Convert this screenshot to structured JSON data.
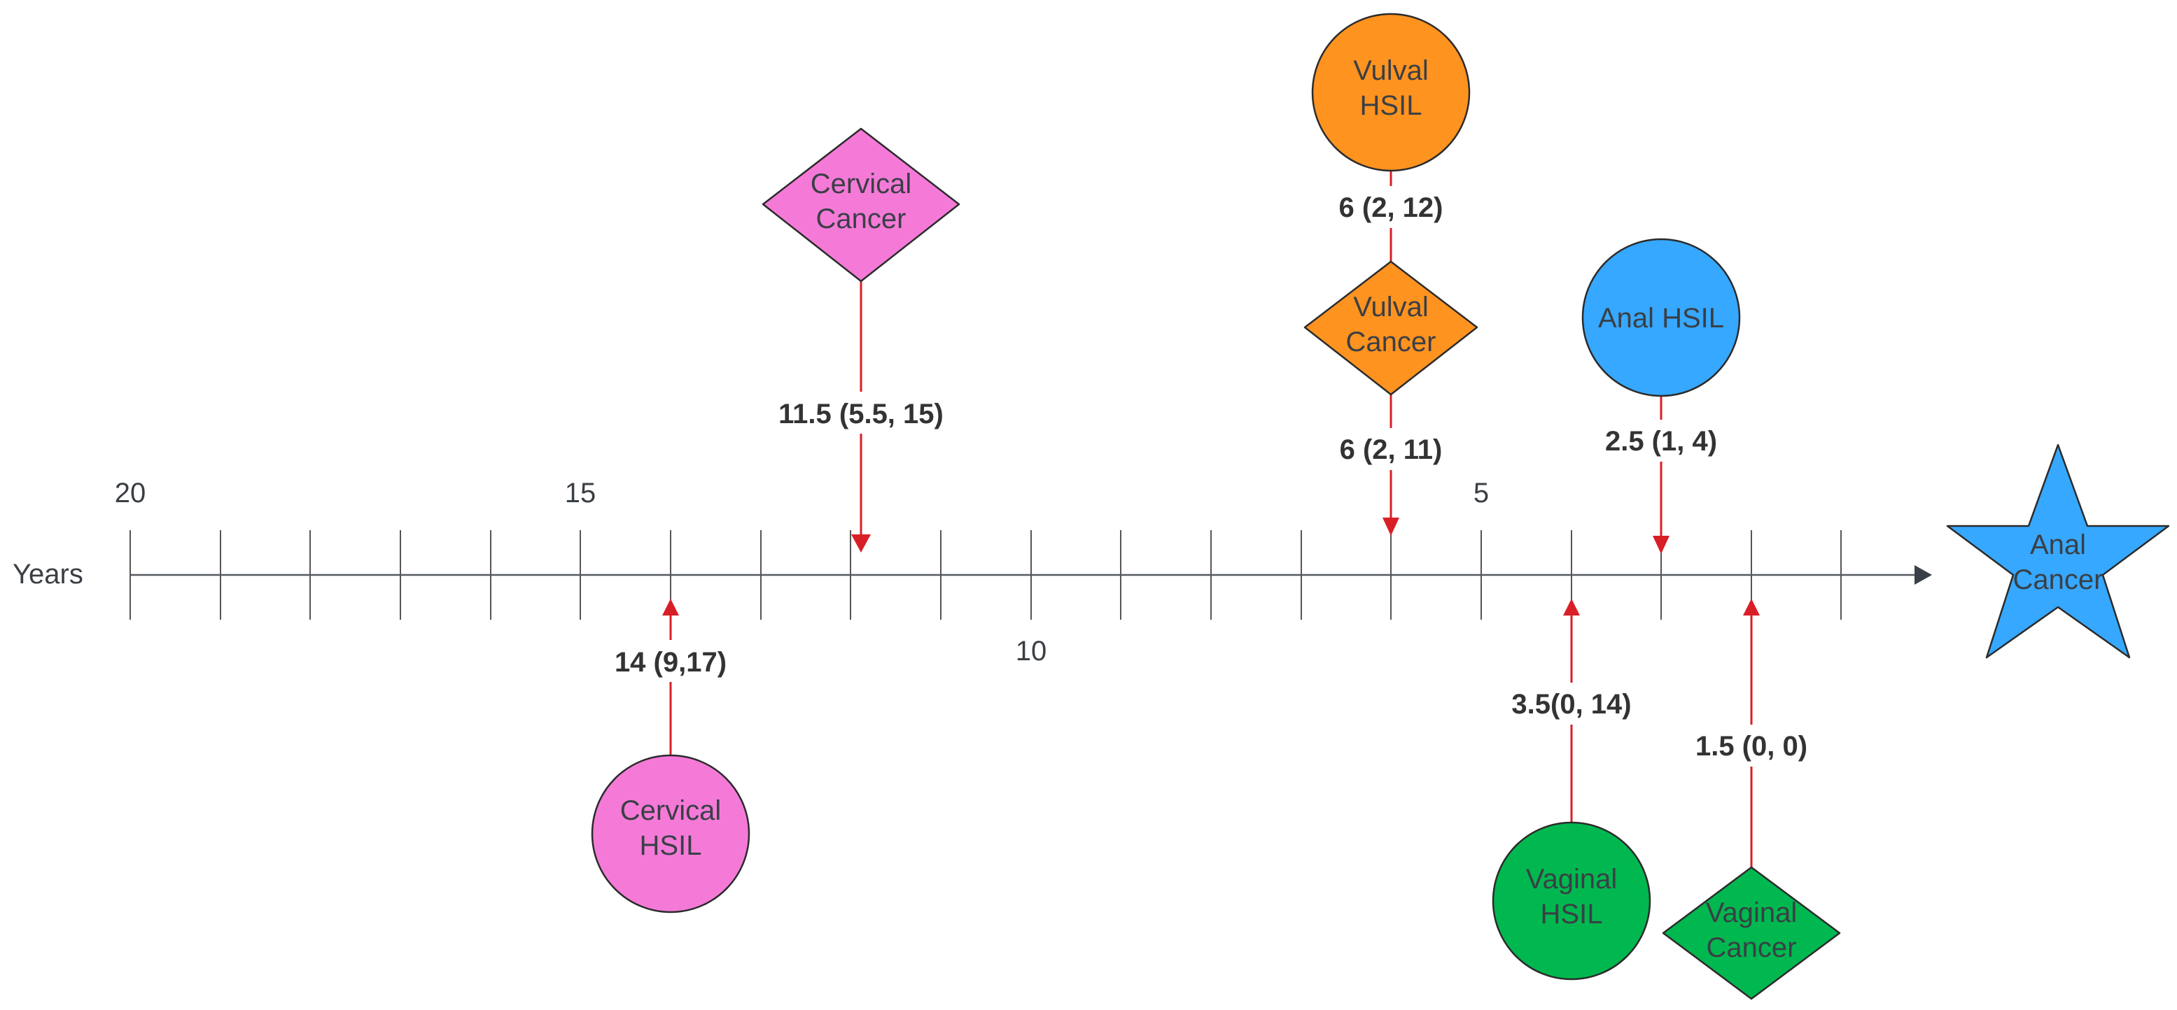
{
  "axis": {
    "label": "Years",
    "tick_labels": [
      "20",
      "15",
      "10",
      "5"
    ]
  },
  "colors": {
    "cervical": "#f57ad8",
    "vulval": "#ff9320",
    "anal": "#36a8ff",
    "vaginal": "#00b84f",
    "arrow": "#d81f26",
    "axis": "#555a60"
  },
  "nodes": {
    "cervical_hsil": {
      "line1": "Cervical",
      "line2": "HSIL"
    },
    "cervical_cancer": {
      "line1": "Cervical",
      "line2": "Cancer"
    },
    "vulval_hsil": {
      "line1": "Vulval",
      "line2": "HSIL"
    },
    "vulval_cancer": {
      "line1": "Vulval",
      "line2": "Cancer"
    },
    "anal_hsil": {
      "line1": "Anal HSIL"
    },
    "anal_cancer": {
      "line1": "Anal",
      "line2": "Cancer"
    },
    "vaginal_hsil": {
      "line1": "Vaginal",
      "line2": "HSIL"
    },
    "vaginal_cancer": {
      "line1": "Vaginal",
      "line2": "Cancer"
    }
  },
  "intervals": {
    "cervical_hsil": "14 (9,17)",
    "cervical_cancer": "11.5 (5.5, 15)",
    "vulval_hsil_to_cancer": "6 (2, 12)",
    "vulval_cancer": "6 (2, 11)",
    "anal_hsil": "2.5 (1, 4)",
    "vaginal_hsil": "3.5(0, 14)",
    "vaginal_cancer": "1.5 (0, 0)"
  }
}
